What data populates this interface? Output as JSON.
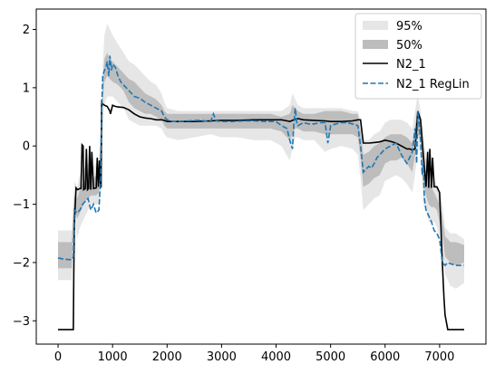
{
  "chart_data": {
    "type": "line",
    "title": "",
    "xlabel": "",
    "ylabel": "",
    "xlim": [
      -400,
      7850
    ],
    "ylim": [
      -3.4,
      2.35
    ],
    "xticks": [
      0,
      1000,
      2000,
      3000,
      4000,
      5000,
      6000,
      7000
    ],
    "yticks": [
      -3,
      -2,
      -1,
      0,
      1,
      2
    ],
    "xtick_labels": [
      "0",
      "1000",
      "2000",
      "3000",
      "4000",
      "5000",
      "6000",
      "7000"
    ],
    "ytick_labels": [
      "−3",
      "−2",
      "−1",
      "0",
      "1",
      "2"
    ],
    "legend_position": "upper right",
    "legend": [
      "95%",
      "50%",
      "N2_1",
      "N2_1 RegLin"
    ],
    "colors": {
      "band95": "#e6e6e6",
      "band50": "#bdbdbd",
      "n2_1": "#000000",
      "reglin": "#1f77b4"
    },
    "band95": {
      "x": [
        0,
        250,
        300,
        350,
        400,
        450,
        500,
        550,
        600,
        650,
        700,
        750,
        800,
        820,
        850,
        900,
        950,
        1000,
        1100,
        1200,
        1300,
        1400,
        1500,
        1600,
        1700,
        1800,
        1900,
        1950,
        2000,
        2200,
        2500,
        2800,
        3000,
        3300,
        3600,
        3900,
        4100,
        4250,
        4300,
        4350,
        4400,
        4500,
        4700,
        4900,
        5000,
        5200,
        5400,
        5500,
        5550,
        5600,
        5700,
        5800,
        5900,
        6000,
        6100,
        6200,
        6300,
        6400,
        6500,
        6550,
        6600,
        6650,
        6700,
        6750,
        6800,
        6850,
        6900,
        6950,
        7000,
        7050,
        7100,
        7200,
        7300,
        7450
      ],
      "lower": [
        -2.3,
        -2.3,
        -1.2,
        -1.6,
        -1.4,
        -1.3,
        -1.2,
        -1.1,
        -1.0,
        -1.0,
        -1.0,
        -1.0,
        -0.7,
        0.1,
        0.7,
        0.85,
        0.85,
        0.85,
        0.75,
        0.65,
        0.45,
        0.4,
        0.35,
        0.35,
        0.35,
        0.35,
        0.3,
        0.2,
        0.15,
        0.1,
        0.15,
        0.2,
        0.15,
        0.15,
        0.1,
        0.1,
        0.0,
        -0.25,
        -0.05,
        0.15,
        0.15,
        0.1,
        0.1,
        -0.1,
        -0.05,
        0.0,
        -0.05,
        -0.15,
        -0.55,
        -1.1,
        -1.0,
        -0.9,
        -0.85,
        -0.6,
        -0.55,
        -0.5,
        -0.55,
        -0.65,
        -0.8,
        -0.5,
        -0.05,
        -0.1,
        -1.0,
        -1.1,
        -1.3,
        -1.3,
        -1.3,
        -1.4,
        -1.6,
        -1.8,
        -2.2,
        -2.4,
        -2.45,
        -2.35
      ],
      "upper": [
        -1.45,
        -1.45,
        -0.6,
        -0.7,
        -0.5,
        -0.4,
        -0.35,
        -0.3,
        -0.3,
        -0.35,
        -0.3,
        -0.25,
        0.6,
        1.4,
        1.9,
        2.1,
        2.0,
        1.9,
        1.75,
        1.6,
        1.45,
        1.4,
        1.3,
        1.2,
        1.1,
        1.05,
        0.9,
        0.75,
        0.65,
        0.6,
        0.6,
        0.6,
        0.6,
        0.6,
        0.6,
        0.6,
        0.6,
        0.7,
        0.9,
        0.8,
        0.7,
        0.65,
        0.65,
        0.65,
        0.65,
        0.65,
        0.6,
        0.6,
        0.45,
        0.1,
        0.1,
        0.2,
        0.25,
        0.4,
        0.45,
        0.45,
        0.45,
        0.4,
        0.3,
        0.6,
        0.9,
        0.6,
        0.2,
        -0.2,
        -0.3,
        -0.4,
        -0.5,
        -0.7,
        -0.8,
        -1.0,
        -1.4,
        -1.5,
        -1.5,
        -1.6
      ]
    },
    "band50": {
      "x": [
        0,
        250,
        300,
        350,
        400,
        450,
        500,
        550,
        600,
        650,
        700,
        750,
        800,
        820,
        850,
        900,
        950,
        1000,
        1100,
        1200,
        1300,
        1400,
        1500,
        1600,
        1700,
        1800,
        1900,
        1950,
        2000,
        2200,
        2500,
        2800,
        3000,
        3300,
        3600,
        3900,
        4100,
        4250,
        4300,
        4350,
        4400,
        4500,
        4700,
        4900,
        5000,
        5200,
        5400,
        5500,
        5550,
        5600,
        5700,
        5800,
        5900,
        6000,
        6100,
        6200,
        6300,
        6400,
        6500,
        6550,
        6600,
        6650,
        6700,
        6750,
        6800,
        6850,
        6900,
        6950,
        7000,
        7050,
        7100,
        7200,
        7300,
        7450
      ],
      "lower": [
        -2.1,
        -2.1,
        -1.05,
        -1.25,
        -1.15,
        -1.05,
        -0.95,
        -0.9,
        -0.85,
        -0.85,
        -0.85,
        -0.8,
        0.0,
        0.75,
        1.1,
        1.2,
        1.15,
        1.1,
        1.05,
        0.95,
        0.75,
        0.65,
        0.6,
        0.55,
        0.55,
        0.5,
        0.45,
        0.35,
        0.3,
        0.3,
        0.3,
        0.3,
        0.3,
        0.3,
        0.3,
        0.3,
        0.25,
        0.1,
        0.2,
        0.3,
        0.3,
        0.25,
        0.25,
        0.2,
        0.2,
        0.2,
        0.2,
        0.15,
        -0.2,
        -0.7,
        -0.65,
        -0.55,
        -0.5,
        -0.3,
        -0.25,
        -0.25,
        -0.2,
        -0.3,
        -0.45,
        -0.15,
        0.2,
        0.1,
        -0.6,
        -0.85,
        -1.0,
        -1.05,
        -1.05,
        -1.1,
        -1.3,
        -1.5,
        -1.9,
        -2.0,
        -2.05,
        -2.0
      ],
      "upper": [
        -1.65,
        -1.65,
        -0.85,
        -0.9,
        -0.75,
        -0.65,
        -0.6,
        -0.55,
        -0.55,
        -0.55,
        -0.5,
        -0.45,
        0.5,
        1.1,
        1.5,
        1.6,
        1.5,
        1.45,
        1.35,
        1.25,
        1.15,
        1.1,
        1.0,
        0.9,
        0.85,
        0.8,
        0.7,
        0.6,
        0.55,
        0.55,
        0.55,
        0.55,
        0.55,
        0.55,
        0.55,
        0.55,
        0.5,
        0.55,
        0.7,
        0.65,
        0.6,
        0.55,
        0.55,
        0.6,
        0.6,
        0.6,
        0.55,
        0.55,
        0.25,
        -0.15,
        -0.1,
        0.0,
        0.05,
        0.15,
        0.2,
        0.2,
        0.2,
        0.15,
        0.05,
        0.35,
        0.6,
        0.4,
        0.0,
        -0.45,
        -0.6,
        -0.7,
        -0.8,
        -0.9,
        -1.0,
        -1.2,
        -1.55,
        -1.65,
        -1.65,
        -1.7
      ]
    },
    "series": [
      {
        "name": "N2_1",
        "style": "solid",
        "x": [
          0,
          280,
          290,
          300,
          330,
          360,
          400,
          420,
          440,
          460,
          470,
          500,
          520,
          540,
          560,
          580,
          600,
          620,
          650,
          700,
          720,
          740,
          760,
          780,
          790,
          800,
          820,
          850,
          900,
          950,
          960,
          1000,
          1050,
          1100,
          1200,
          1300,
          1400,
          1500,
          1600,
          1700,
          1800,
          1900,
          1950,
          2000,
          2200,
          2500,
          2800,
          3000,
          3300,
          3600,
          3900,
          4100,
          4200,
          4250,
          4300,
          4350,
          4400,
          4500,
          4700,
          4900,
          5000,
          5200,
          5400,
          5500,
          5550,
          5600,
          5700,
          5800,
          5900,
          6000,
          6100,
          6200,
          6300,
          6400,
          6450,
          6500,
          6550,
          6600,
          6650,
          6700,
          6750,
          6780,
          6800,
          6820,
          6850,
          6870,
          6900,
          6950,
          7000,
          7050,
          7080,
          7100,
          7150,
          7200,
          7300,
          7450
        ],
        "y": [
          -3.15,
          -3.15,
          -2.0,
          -1.3,
          -0.72,
          -0.75,
          -0.73,
          -0.73,
          0.02,
          0.0,
          -0.75,
          -0.73,
          -0.05,
          -0.75,
          -0.73,
          0.0,
          -0.75,
          -0.1,
          -0.73,
          -0.72,
          -0.2,
          -0.7,
          -0.25,
          -0.7,
          -0.7,
          0.75,
          0.72,
          0.7,
          0.68,
          0.6,
          0.55,
          0.7,
          0.68,
          0.67,
          0.66,
          0.62,
          0.55,
          0.5,
          0.48,
          0.47,
          0.45,
          0.45,
          0.44,
          0.42,
          0.42,
          0.42,
          0.43,
          0.44,
          0.44,
          0.45,
          0.45,
          0.45,
          0.43,
          0.42,
          0.44,
          0.46,
          0.47,
          0.45,
          0.44,
          0.43,
          0.42,
          0.42,
          0.43,
          0.45,
          0.45,
          0.05,
          0.05,
          0.06,
          0.07,
          0.1,
          0.08,
          0.05,
          0.0,
          -0.05,
          -0.05,
          -0.07,
          -0.05,
          0.6,
          0.45,
          -0.15,
          -0.7,
          -0.1,
          -0.72,
          -0.05,
          -0.72,
          -0.2,
          -0.7,
          -0.7,
          -0.8,
          -2.0,
          -2.6,
          -2.9,
          -3.15,
          -3.15,
          -3.15,
          -3.15
        ]
      },
      {
        "name": "N2_1 RegLin",
        "style": "dashed",
        "x": [
          0,
          100,
          200,
          250,
          280,
          300,
          350,
          400,
          450,
          500,
          550,
          600,
          650,
          700,
          750,
          780,
          800,
          820,
          850,
          880,
          900,
          930,
          950,
          980,
          1000,
          1050,
          1100,
          1150,
          1200,
          1300,
          1400,
          1500,
          1600,
          1700,
          1800,
          1900,
          1950,
          2000,
          2100,
          2200,
          2400,
          2600,
          2800,
          2850,
          2900,
          3000,
          3200,
          3400,
          3600,
          3800,
          4000,
          4100,
          4200,
          4250,
          4300,
          4320,
          4350,
          4380,
          4400,
          4500,
          4600,
          4700,
          4800,
          4900,
          4950,
          5000,
          5100,
          5200,
          5300,
          5400,
          5500,
          5550,
          5600,
          5650,
          5700,
          5750,
          5800,
          5850,
          5900,
          6000,
          6100,
          6200,
          6300,
          6400,
          6450,
          6500,
          6550,
          6580,
          6600,
          6620,
          6650,
          6680,
          6700,
          6720,
          6750,
          6800,
          6850,
          6900,
          6950,
          7000,
          7050,
          7100,
          7150,
          7200,
          7300,
          7450
        ],
        "y": [
          -1.92,
          -1.94,
          -1.95,
          -1.95,
          -1.9,
          -1.1,
          -1.15,
          -1.1,
          -1.0,
          -0.95,
          -0.9,
          -1.1,
          -1.0,
          -1.15,
          -1.1,
          -0.6,
          0.6,
          1.2,
          1.3,
          1.35,
          1.45,
          1.2,
          1.55,
          1.3,
          1.4,
          1.35,
          1.2,
          1.1,
          1.05,
          0.95,
          0.85,
          0.82,
          0.75,
          0.7,
          0.65,
          0.6,
          0.5,
          0.45,
          0.42,
          0.42,
          0.43,
          0.44,
          0.42,
          0.55,
          0.43,
          0.42,
          0.42,
          0.43,
          0.43,
          0.42,
          0.42,
          0.35,
          0.3,
          0.1,
          -0.05,
          0.3,
          0.65,
          0.4,
          0.35,
          0.4,
          0.38,
          0.38,
          0.4,
          0.4,
          0.05,
          0.35,
          0.38,
          0.4,
          0.4,
          0.38,
          0.35,
          0.0,
          -0.45,
          -0.4,
          -0.35,
          -0.38,
          -0.3,
          -0.2,
          -0.15,
          -0.05,
          0.0,
          0.05,
          -0.15,
          -0.3,
          -0.2,
          -0.1,
          0.3,
          -0.3,
          0.6,
          0.4,
          0.1,
          -0.5,
          -0.3,
          -0.9,
          -1.1,
          -1.2,
          -1.3,
          -1.45,
          -1.5,
          -1.6,
          -2.0,
          -2.05,
          -2.0,
          -2.02,
          -2.05,
          -2.05
        ]
      }
    ]
  }
}
